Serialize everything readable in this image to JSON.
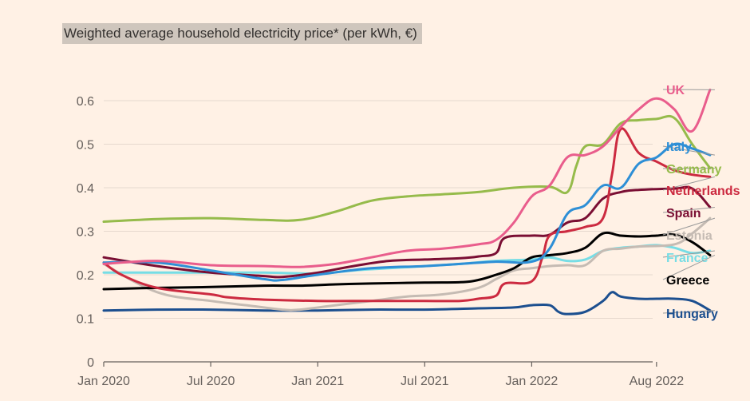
{
  "chart_data": {
    "type": "line",
    "title": "Weighted average household electricity price* (per kWh, €)",
    "xlabel": "",
    "ylabel": "",
    "ylim": [
      0,
      0.6
    ],
    "yticks": [
      "0",
      "0.1",
      "0.2",
      "0.3",
      "0.4",
      "0.5",
      "0.6"
    ],
    "xticks": [
      "Jan 2020",
      "Jul 2020",
      "Jan 2021",
      "Jul 2021",
      "Jan 2022",
      "Aug 2022"
    ],
    "grid": "horizontal",
    "legend": "direct labels at right end of lines",
    "x_unit": "month index from Jan 2020",
    "series": [
      {
        "name": "UK",
        "color": "#e95d8c",
        "values": [
          [
            0,
            0.225
          ],
          [
            3,
            0.232
          ],
          [
            6,
            0.222
          ],
          [
            9,
            0.22
          ],
          [
            11,
            0.218
          ],
          [
            13,
            0.225
          ],
          [
            15,
            0.24
          ],
          [
            17,
            0.255
          ],
          [
            19,
            0.26
          ],
          [
            21,
            0.27
          ],
          [
            22,
            0.28
          ],
          [
            23,
            0.32
          ],
          [
            24,
            0.38
          ],
          [
            25,
            0.405
          ],
          [
            26,
            0.47
          ],
          [
            27,
            0.475
          ],
          [
            28,
            0.495
          ],
          [
            29,
            0.54
          ],
          [
            30,
            0.58
          ],
          [
            31,
            0.605
          ],
          [
            32,
            0.58
          ],
          [
            33,
            0.53
          ],
          [
            34,
            0.625
          ]
        ]
      },
      {
        "name": "Italy",
        "color": "#2e8fd6",
        "values": [
          [
            0,
            0.228
          ],
          [
            3,
            0.228
          ],
          [
            6,
            0.21
          ],
          [
            9,
            0.19
          ],
          [
            10,
            0.188
          ],
          [
            12,
            0.2
          ],
          [
            15,
            0.215
          ],
          [
            18,
            0.22
          ],
          [
            20,
            0.225
          ],
          [
            22,
            0.23
          ],
          [
            24,
            0.23
          ],
          [
            25,
            0.26
          ],
          [
            26,
            0.34
          ],
          [
            27,
            0.36
          ],
          [
            28,
            0.405
          ],
          [
            29,
            0.4
          ],
          [
            30,
            0.455
          ],
          [
            31,
            0.47
          ],
          [
            32,
            0.5
          ],
          [
            33,
            0.49
          ],
          [
            34,
            0.475
          ]
        ]
      },
      {
        "name": "Germany",
        "color": "#96bb4b",
        "values": [
          [
            0,
            0.322
          ],
          [
            3,
            0.328
          ],
          [
            6,
            0.33
          ],
          [
            9,
            0.326
          ],
          [
            11,
            0.326
          ],
          [
            13,
            0.345
          ],
          [
            15,
            0.37
          ],
          [
            17,
            0.38
          ],
          [
            19,
            0.385
          ],
          [
            21,
            0.39
          ],
          [
            23,
            0.4
          ],
          [
            25,
            0.402
          ],
          [
            26,
            0.39
          ],
          [
            26.5,
            0.45
          ],
          [
            27,
            0.495
          ],
          [
            28,
            0.5
          ],
          [
            29,
            0.548
          ],
          [
            30,
            0.555
          ],
          [
            31,
            0.558
          ],
          [
            32,
            0.56
          ],
          [
            33,
            0.5
          ],
          [
            34,
            0.445
          ]
        ]
      },
      {
        "name": "Netherlands",
        "color": "#cc2a40",
        "values": [
          [
            0,
            0.228
          ],
          [
            1,
            0.2
          ],
          [
            3,
            0.17
          ],
          [
            6,
            0.155
          ],
          [
            7,
            0.148
          ],
          [
            9,
            0.143
          ],
          [
            12,
            0.14
          ],
          [
            15,
            0.14
          ],
          [
            18,
            0.14
          ],
          [
            20,
            0.14
          ],
          [
            21,
            0.145
          ],
          [
            22,
            0.152
          ],
          [
            22.5,
            0.18
          ],
          [
            24,
            0.185
          ],
          [
            24.6,
            0.24
          ],
          [
            25,
            0.29
          ],
          [
            26,
            0.3
          ],
          [
            27,
            0.31
          ],
          [
            28,
            0.33
          ],
          [
            28.5,
            0.43
          ],
          [
            29,
            0.535
          ],
          [
            30,
            0.48
          ],
          [
            31,
            0.46
          ],
          [
            32,
            0.44
          ],
          [
            33,
            0.43
          ],
          [
            34,
            0.425
          ]
        ]
      },
      {
        "name": "Spain",
        "color": "#7a0e33",
        "values": [
          [
            0,
            0.24
          ],
          [
            3,
            0.22
          ],
          [
            6,
            0.205
          ],
          [
            9,
            0.197
          ],
          [
            10,
            0.195
          ],
          [
            12,
            0.205
          ],
          [
            14,
            0.22
          ],
          [
            16,
            0.232
          ],
          [
            18,
            0.235
          ],
          [
            20,
            0.238
          ],
          [
            21,
            0.242
          ],
          [
            22,
            0.25
          ],
          [
            22.5,
            0.285
          ],
          [
            24,
            0.29
          ],
          [
            25,
            0.292
          ],
          [
            26,
            0.32
          ],
          [
            27,
            0.33
          ],
          [
            28,
            0.375
          ],
          [
            29,
            0.39
          ],
          [
            30,
            0.395
          ],
          [
            32,
            0.398
          ],
          [
            33,
            0.398
          ],
          [
            34,
            0.355
          ]
        ]
      },
      {
        "name": "Estonia",
        "color": "#c5bbb3",
        "values": [
          [
            0,
            0.225
          ],
          [
            3,
            0.16
          ],
          [
            6,
            0.14
          ],
          [
            8,
            0.13
          ],
          [
            10,
            0.12
          ],
          [
            11,
            0.12
          ],
          [
            13,
            0.13
          ],
          [
            15,
            0.14
          ],
          [
            17,
            0.15
          ],
          [
            19,
            0.155
          ],
          [
            21,
            0.17
          ],
          [
            22,
            0.19
          ],
          [
            23,
            0.21
          ],
          [
            24,
            0.215
          ],
          [
            25,
            0.22
          ],
          [
            26,
            0.222
          ],
          [
            27,
            0.222
          ],
          [
            28,
            0.255
          ],
          [
            29,
            0.26
          ],
          [
            30,
            0.265
          ],
          [
            32,
            0.27
          ],
          [
            33,
            0.295
          ],
          [
            34,
            0.33
          ]
        ]
      },
      {
        "name": "France",
        "color": "#77dde5",
        "values": [
          [
            0,
            0.205
          ],
          [
            3,
            0.205
          ],
          [
            6,
            0.205
          ],
          [
            9,
            0.205
          ],
          [
            12,
            0.203
          ],
          [
            14,
            0.21
          ],
          [
            16,
            0.215
          ],
          [
            18,
            0.22
          ],
          [
            20,
            0.225
          ],
          [
            22,
            0.232
          ],
          [
            24,
            0.235
          ],
          [
            25,
            0.24
          ],
          [
            26,
            0.232
          ],
          [
            27,
            0.235
          ],
          [
            28,
            0.255
          ],
          [
            29,
            0.262
          ],
          [
            30,
            0.265
          ],
          [
            31,
            0.268
          ],
          [
            32,
            0.262
          ],
          [
            33,
            0.25
          ],
          [
            34,
            0.255
          ]
        ]
      },
      {
        "name": "Greece",
        "color": "#000000",
        "values": [
          [
            0,
            0.167
          ],
          [
            3,
            0.17
          ],
          [
            6,
            0.172
          ],
          [
            9,
            0.175
          ],
          [
            11,
            0.175
          ],
          [
            13,
            0.178
          ],
          [
            15,
            0.18
          ],
          [
            18,
            0.182
          ],
          [
            20,
            0.183
          ],
          [
            21,
            0.188
          ],
          [
            22,
            0.2
          ],
          [
            23,
            0.215
          ],
          [
            24,
            0.24
          ],
          [
            25,
            0.245
          ],
          [
            26,
            0.25
          ],
          [
            27,
            0.262
          ],
          [
            28,
            0.295
          ],
          [
            29,
            0.29
          ],
          [
            30,
            0.288
          ],
          [
            31,
            0.29
          ],
          [
            32,
            0.292
          ],
          [
            33,
            0.275
          ],
          [
            34,
            0.245
          ]
        ]
      },
      {
        "name": "Hungary",
        "color": "#1c4f8f",
        "values": [
          [
            0,
            0.118
          ],
          [
            3,
            0.12
          ],
          [
            6,
            0.12
          ],
          [
            9,
            0.118
          ],
          [
            12,
            0.118
          ],
          [
            15,
            0.12
          ],
          [
            18,
            0.12
          ],
          [
            21,
            0.123
          ],
          [
            23,
            0.125
          ],
          [
            24,
            0.13
          ],
          [
            25,
            0.13
          ],
          [
            25.5,
            0.115
          ],
          [
            26,
            0.11
          ],
          [
            27,
            0.115
          ],
          [
            28,
            0.14
          ],
          [
            28.5,
            0.16
          ],
          [
            29,
            0.15
          ],
          [
            30,
            0.145
          ],
          [
            31,
            0.145
          ],
          [
            32,
            0.145
          ],
          [
            33,
            0.14
          ],
          [
            34,
            0.118
          ]
        ]
      }
    ]
  }
}
